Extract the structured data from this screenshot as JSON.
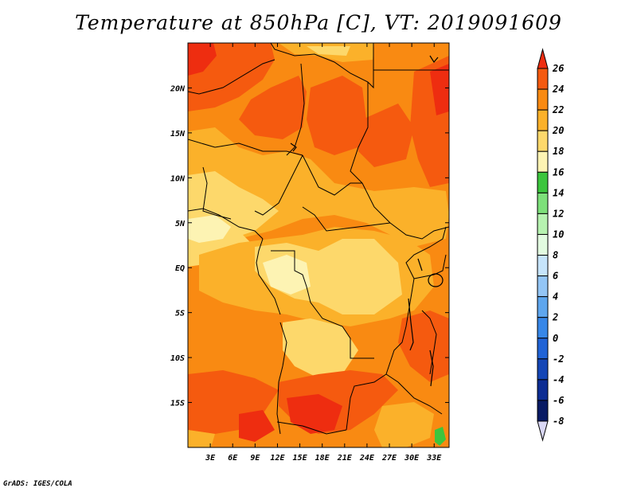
{
  "title": "Temperature at 850hPa [C], VT: 2019091609",
  "credit": "GrADS: IGES/COLA",
  "map": {
    "region": "Central Africa",
    "lon_range": [
      0,
      35
    ],
    "lat_range": [
      -20,
      25
    ],
    "lat_ticks": [
      {
        "label": "20N",
        "lat": 20
      },
      {
        "label": "15N",
        "lat": 15
      },
      {
        "label": "10N",
        "lat": 10
      },
      {
        "label": "5N",
        "lat": 5
      },
      {
        "label": "EQ",
        "lat": 0
      },
      {
        "label": "5S",
        "lat": -5
      },
      {
        "label": "10S",
        "lat": -10
      },
      {
        "label": "15S",
        "lat": -15
      }
    ],
    "lon_ticks": [
      {
        "label": "3E",
        "lon": 3
      },
      {
        "label": "6E",
        "lon": 6
      },
      {
        "label": "9E",
        "lon": 9
      },
      {
        "label": "12E",
        "lon": 12
      },
      {
        "label": "15E",
        "lon": 15
      },
      {
        "label": "18E",
        "lon": 18
      },
      {
        "label": "21E",
        "lon": 21
      },
      {
        "label": "24E",
        "lon": 24
      },
      {
        "label": "27E",
        "lon": 27
      },
      {
        "label": "30E",
        "lon": 30
      },
      {
        "label": "33E",
        "lon": 33
      }
    ]
  },
  "colorbar": {
    "levels": [
      "26",
      "24",
      "22",
      "20",
      "18",
      "16",
      "14",
      "12",
      "10",
      "8",
      "6",
      "4",
      "2",
      "0",
      "-2",
      "-4",
      "-6",
      "-8"
    ],
    "colors": [
      "#ee2d10",
      "#f55a0f",
      "#f98a12",
      "#fbb12a",
      "#fdd86b",
      "#fdf3b3",
      "#3cc53d",
      "#7de07a",
      "#b6f2b0",
      "#e2fbe0",
      "#c6e4fb",
      "#93c5f5",
      "#5ea6ee",
      "#3787e8",
      "#2063d6",
      "#1446b6",
      "#0c2c93",
      "#081a64"
    ],
    "lower_extension_color": "#d9d7f5"
  }
}
